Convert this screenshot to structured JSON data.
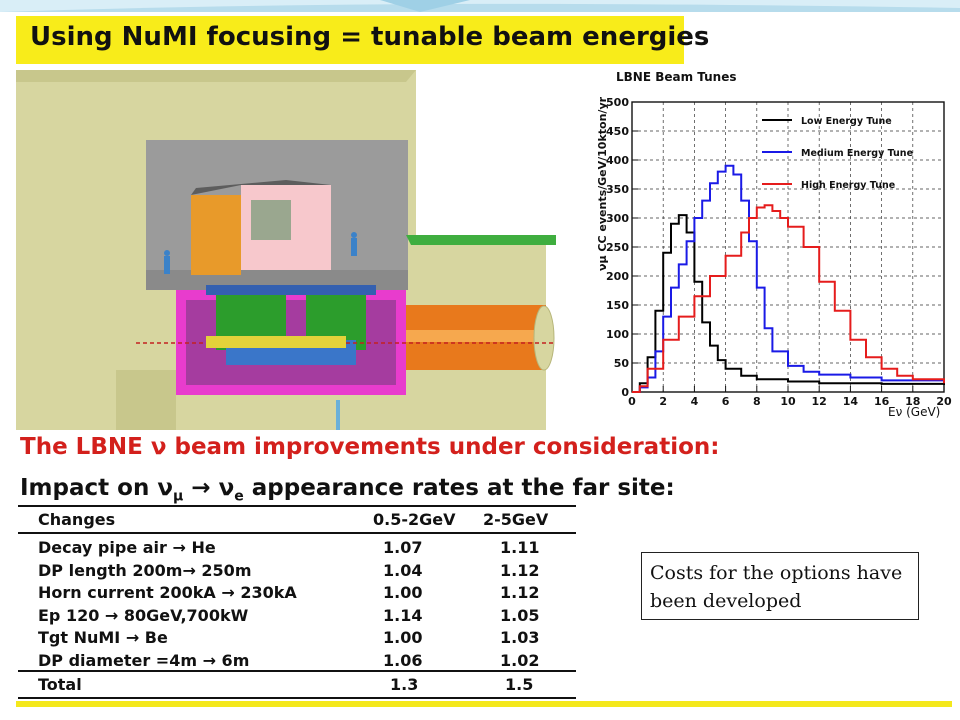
{
  "slide": {
    "title": "Using NuMI focusing = tunable beam energies",
    "heading_red": "The LBNE ν beam improvements under consideration:",
    "heading_black": "Impact on ν",
    "heading_black_mu": "μ",
    "heading_black_arrow": " → ν",
    "heading_black_e": "e",
    "heading_black_tail": " appearance rates at the far site:",
    "note": "Costs for the options have been developed"
  },
  "table": {
    "headers": [
      "Changes",
      "0.5-2GeV",
      "2-5GeV"
    ],
    "rows": [
      {
        "change": "Decay pipe air → He",
        "low": "1.07",
        "high": "1.11"
      },
      {
        "change": "DP length 200m→ 250m",
        "low": "1.04",
        "high": "1.12"
      },
      {
        "change": "Horn current 200kA → 230kA",
        "low": "1.00",
        "high": "1.12"
      },
      {
        "change": "Ep 120 → 80GeV,700kW",
        "low": "1.14",
        "high": "1.05"
      },
      {
        "change": "Tgt NuMI → Be",
        "low": "1.00",
        "high": "1.03"
      },
      {
        "change": "DP diameter =4m → 6m",
        "low": "1.06",
        "high": "1.02"
      }
    ],
    "total": {
      "change": "Total",
      "low": "1.3",
      "high": "1.5"
    }
  },
  "chart_data": {
    "type": "line",
    "title": "LBNE Beam Tunes",
    "xlabel": "Eν (GeV)",
    "ylabel": "νμ CC events/GeV/10kton/yr",
    "xlim": [
      0,
      20
    ],
    "ylim": [
      0,
      500
    ],
    "xticks": [
      0,
      2,
      4,
      6,
      8,
      10,
      12,
      14,
      16,
      18,
      20
    ],
    "yticks": [
      0,
      50,
      100,
      150,
      200,
      250,
      300,
      350,
      400,
      450,
      500
    ],
    "grid": true,
    "legend": "top-right",
    "series": [
      {
        "name": "Low Energy Tune",
        "color": "#000000",
        "x": [
          0,
          0.5,
          1,
          1.5,
          2,
          2.5,
          3,
          3.5,
          4,
          4.5,
          5,
          5.5,
          6,
          7,
          8,
          10,
          12,
          16,
          20
        ],
        "y": [
          0,
          15,
          60,
          140,
          240,
          290,
          305,
          275,
          190,
          120,
          80,
          55,
          40,
          28,
          22,
          18,
          15,
          14,
          12
        ]
      },
      {
        "name": "Medium Energy Tune",
        "color": "#1a1ae6",
        "x": [
          0,
          0.5,
          1,
          1.5,
          2,
          2.5,
          3,
          3.5,
          4,
          4.5,
          5,
          5.5,
          6,
          6.5,
          7,
          7.5,
          8,
          8.5,
          9,
          10,
          11,
          12,
          14,
          16,
          20
        ],
        "y": [
          0,
          8,
          25,
          70,
          130,
          180,
          220,
          260,
          300,
          330,
          360,
          380,
          390,
          375,
          330,
          260,
          180,
          110,
          70,
          45,
          35,
          30,
          25,
          20,
          18
        ]
      },
      {
        "name": "High Energy Tune",
        "color": "#e51c1c",
        "x": [
          0,
          0.5,
          1,
          2,
          3,
          4,
          5,
          6,
          7,
          7.5,
          8,
          8.5,
          9,
          9.5,
          10,
          11,
          12,
          13,
          14,
          15,
          16,
          17,
          18,
          20
        ],
        "y": [
          0,
          10,
          40,
          90,
          130,
          165,
          200,
          235,
          275,
          300,
          318,
          322,
          312,
          300,
          285,
          250,
          190,
          140,
          90,
          60,
          40,
          28,
          22,
          15
        ]
      }
    ]
  }
}
